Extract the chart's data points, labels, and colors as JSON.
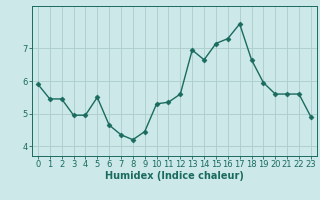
{
  "x": [
    0,
    1,
    2,
    3,
    4,
    5,
    6,
    7,
    8,
    9,
    10,
    11,
    12,
    13,
    14,
    15,
    16,
    17,
    18,
    19,
    20,
    21,
    22,
    23
  ],
  "y": [
    5.9,
    5.45,
    5.45,
    4.95,
    4.95,
    5.5,
    4.65,
    4.35,
    4.2,
    4.45,
    5.3,
    5.35,
    5.6,
    6.95,
    6.65,
    7.15,
    7.3,
    7.75,
    6.65,
    5.95,
    5.6,
    5.6,
    5.6,
    4.9
  ],
  "line_color": "#1a6b5e",
  "marker": "D",
  "marker_size": 2.5,
  "line_width": 1.0,
  "bg_color": "#cce8e8",
  "grid_color": "#b0d0d0",
  "axis_color": "#1a6b5e",
  "xlabel": "Humidex (Indice chaleur)",
  "xlabel_fontsize": 7,
  "tick_fontsize": 6,
  "ylim": [
    3.7,
    8.3
  ],
  "xlim": [
    -0.5,
    23.5
  ],
  "yticks": [
    4,
    5,
    6,
    7
  ],
  "xticks": [
    0,
    1,
    2,
    3,
    4,
    5,
    6,
    7,
    8,
    9,
    10,
    11,
    12,
    13,
    14,
    15,
    16,
    17,
    18,
    19,
    20,
    21,
    22,
    23
  ]
}
